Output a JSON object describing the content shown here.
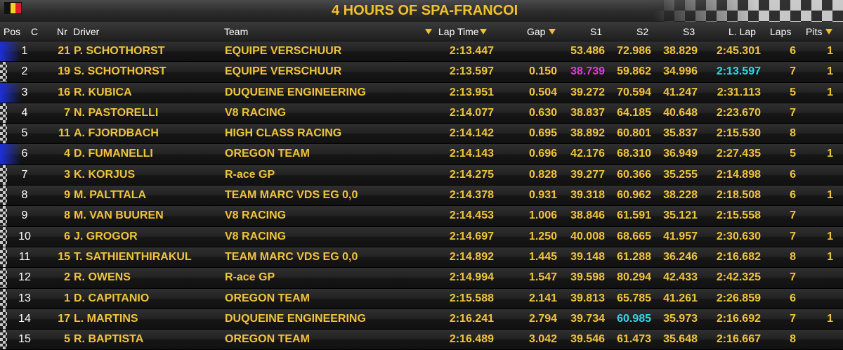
{
  "header": {
    "title": "4 HOURS OF SPA-FRANCOI",
    "flag": {
      "colors": [
        "#111111",
        "#f6d226",
        "#e2202b"
      ]
    }
  },
  "columns": {
    "pos": "Pos",
    "c": "C",
    "nr": "Nr",
    "driver": "Driver",
    "team": "Team",
    "lap_time": "Lap Time",
    "gap": "Gap",
    "s1": "S1",
    "s2": "S2",
    "s3": "S3",
    "last_lap": "L. Lap",
    "laps": "Laps",
    "pits": "Pits"
  },
  "colors": {
    "text": "#f0c43a",
    "best_sector": "#e23ad7",
    "personal_best": "#33d6e8",
    "class_marker": "#1d2fd8"
  },
  "rows": [
    {
      "pos": "1",
      "nr": "21",
      "driver": "P. SCHOTHORST",
      "team": "EQUIPE VERSCHUUR",
      "lap_time": "2:13.447",
      "gap": "",
      "s1": "53.486",
      "s2": "72.986",
      "s3": "38.829",
      "last_lap": "2:45.301",
      "laps": "6",
      "pits": "1",
      "marker": "blue"
    },
    {
      "pos": "2",
      "nr": "19",
      "driver": "S. SCHOTHORST",
      "team": "EQUIPE VERSCHUUR",
      "lap_time": "2:13.597",
      "gap": "0.150",
      "s1": "38.739",
      "s2": "59.862",
      "s3": "34.996",
      "last_lap": "2:13.597",
      "laps": "7",
      "pits": "1",
      "marker": "checker",
      "s1_color": "magenta",
      "last_lap_color": "cyan"
    },
    {
      "pos": "3",
      "nr": "16",
      "driver": "R. KUBICA",
      "team": "DUQUEINE ENGINEERING",
      "lap_time": "2:13.951",
      "gap": "0.504",
      "s1": "39.272",
      "s2": "70.594",
      "s3": "41.247",
      "last_lap": "2:31.113",
      "laps": "5",
      "pits": "1",
      "marker": "blue"
    },
    {
      "pos": "4",
      "nr": "7",
      "driver": "N. PASTORELLI",
      "team": "V8 RACING",
      "lap_time": "2:14.077",
      "gap": "0.630",
      "s1": "38.837",
      "s2": "64.185",
      "s3": "40.648",
      "last_lap": "2:23.670",
      "laps": "7",
      "pits": "",
      "marker": "checker"
    },
    {
      "pos": "5",
      "nr": "11",
      "driver": "A. FJORDBACH",
      "team": "HIGH CLASS RACING",
      "lap_time": "2:14.142",
      "gap": "0.695",
      "s1": "38.892",
      "s2": "60.801",
      "s3": "35.837",
      "last_lap": "2:15.530",
      "laps": "8",
      "pits": "",
      "marker": "checker"
    },
    {
      "pos": "6",
      "nr": "4",
      "driver": "D. FUMANELLI",
      "team": "OREGON TEAM",
      "lap_time": "2:14.143",
      "gap": "0.696",
      "s1": "42.176",
      "s2": "68.310",
      "s3": "36.949",
      "last_lap": "2:27.435",
      "laps": "5",
      "pits": "1",
      "marker": "blue"
    },
    {
      "pos": "7",
      "nr": "3",
      "driver": "K. KORJUS",
      "team": "R-ace GP",
      "lap_time": "2:14.275",
      "gap": "0.828",
      "s1": "39.277",
      "s2": "60.366",
      "s3": "35.255",
      "last_lap": "2:14.898",
      "laps": "6",
      "pits": "",
      "marker": "checker"
    },
    {
      "pos": "8",
      "nr": "9",
      "driver": "M. PALTTALA",
      "team": "TEAM MARC VDS EG 0,0",
      "lap_time": "2:14.378",
      "gap": "0.931",
      "s1": "39.318",
      "s2": "60.962",
      "s3": "38.228",
      "last_lap": "2:18.508",
      "laps": "6",
      "pits": "1",
      "marker": "checker"
    },
    {
      "pos": "9",
      "nr": "8",
      "driver": "M. VAN BUUREN",
      "team": "V8 RACING",
      "lap_time": "2:14.453",
      "gap": "1.006",
      "s1": "38.846",
      "s2": "61.591",
      "s3": "35.121",
      "last_lap": "2:15.558",
      "laps": "7",
      "pits": "",
      "marker": "checker"
    },
    {
      "pos": "10",
      "nr": "6",
      "driver": "J. GROGOR",
      "team": "V8 RACING",
      "lap_time": "2:14.697",
      "gap": "1.250",
      "s1": "40.008",
      "s2": "68.665",
      "s3": "41.957",
      "last_lap": "2:30.630",
      "laps": "7",
      "pits": "1",
      "marker": "checker"
    },
    {
      "pos": "11",
      "nr": "15",
      "driver": "T. SATHIENTHIRAKUL",
      "team": "TEAM MARC VDS EG 0,0",
      "lap_time": "2:14.892",
      "gap": "1.445",
      "s1": "39.148",
      "s2": "61.288",
      "s3": "36.246",
      "last_lap": "2:16.682",
      "laps": "8",
      "pits": "1",
      "marker": "checker"
    },
    {
      "pos": "12",
      "nr": "2",
      "driver": "R. OWENS",
      "team": "R-ace GP",
      "lap_time": "2:14.994",
      "gap": "1.547",
      "s1": "39.598",
      "s2": "80.294",
      "s3": "42.433",
      "last_lap": "2:42.325",
      "laps": "7",
      "pits": "",
      "marker": "checker"
    },
    {
      "pos": "13",
      "nr": "1",
      "driver": "D. CAPITANIO",
      "team": "OREGON TEAM",
      "lap_time": "2:15.588",
      "gap": "2.141",
      "s1": "39.813",
      "s2": "65.785",
      "s3": "41.261",
      "last_lap": "2:26.859",
      "laps": "6",
      "pits": "",
      "marker": "checker"
    },
    {
      "pos": "14",
      "nr": "17",
      "driver": "L. MARTINS",
      "team": "DUQUEINE ENGINEERING",
      "lap_time": "2:16.241",
      "gap": "2.794",
      "s1": "39.734",
      "s2": "60.985",
      "s3": "35.973",
      "last_lap": "2:16.692",
      "laps": "7",
      "pits": "1",
      "marker": "checker",
      "s2_color": "cyan"
    },
    {
      "pos": "15",
      "nr": "5",
      "driver": "R. BAPTISTA",
      "team": "OREGON TEAM",
      "lap_time": "2:16.489",
      "gap": "3.042",
      "s1": "39.546",
      "s2": "61.473",
      "s3": "35.648",
      "last_lap": "2:16.667",
      "laps": "8",
      "pits": "",
      "marker": "checker"
    }
  ]
}
